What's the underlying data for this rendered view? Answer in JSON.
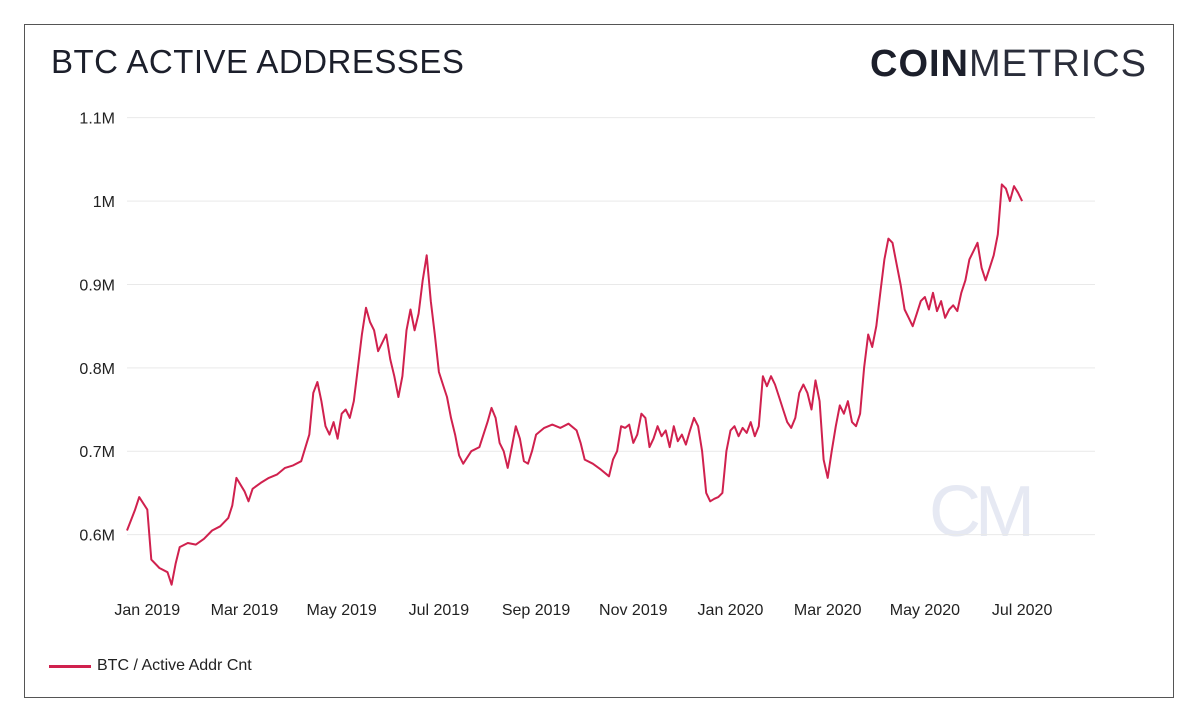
{
  "header": {
    "title": "BTC ACTIVE ADDRESSES",
    "logo_bold": "COIN",
    "logo_light": "METRICS",
    "watermark": "CM"
  },
  "colors": {
    "series": "#d0214e",
    "grid": "#e9e9e9",
    "text": "#222222"
  },
  "chart_data": {
    "type": "line",
    "title": "BTC ACTIVE ADDRESSES",
    "xlabel": "",
    "ylabel": "",
    "ylim": [
      530000,
      1120000
    ],
    "y_ticks": [
      {
        "value": 600000,
        "label": "0.6M"
      },
      {
        "value": 700000,
        "label": "0.7M"
      },
      {
        "value": 800000,
        "label": "0.8M"
      },
      {
        "value": 900000,
        "label": "0.9M"
      },
      {
        "value": 1000000,
        "label": "1M"
      },
      {
        "value": 1100000,
        "label": "1.1M"
      }
    ],
    "x_range_days": [
      -5,
      234
    ],
    "x_ticks": [
      {
        "day": 0,
        "label": "Jan 2019"
      },
      {
        "day": 24,
        "label": "Mar 2019"
      },
      {
        "day": 48,
        "label": "May 2019"
      },
      {
        "day": 72,
        "label": "Jul 2019"
      },
      {
        "day": 96,
        "label": "Sep 2019"
      },
      {
        "day": 120,
        "label": "Nov 2019"
      },
      {
        "day": 144,
        "label": "Jan 2020"
      },
      {
        "day": 168,
        "label": "Mar 2020"
      },
      {
        "day": 192,
        "label": "May 2020"
      },
      {
        "day": 216,
        "label": "Jul 2020"
      }
    ],
    "series": [
      {
        "name": "BTC / Active Addr Cnt",
        "points": [
          [
            -5,
            605000
          ],
          [
            -3,
            630000
          ],
          [
            -2,
            645000
          ],
          [
            0,
            630000
          ],
          [
            1,
            570000
          ],
          [
            3,
            560000
          ],
          [
            5,
            555000
          ],
          [
            6,
            540000
          ],
          [
            7,
            565000
          ],
          [
            8,
            585000
          ],
          [
            10,
            590000
          ],
          [
            12,
            588000
          ],
          [
            14,
            595000
          ],
          [
            16,
            605000
          ],
          [
            18,
            610000
          ],
          [
            20,
            620000
          ],
          [
            21,
            635000
          ],
          [
            22,
            668000
          ],
          [
            24,
            652000
          ],
          [
            25,
            640000
          ],
          [
            26,
            655000
          ],
          [
            28,
            662000
          ],
          [
            30,
            668000
          ],
          [
            32,
            672000
          ],
          [
            34,
            680000
          ],
          [
            36,
            683000
          ],
          [
            38,
            688000
          ],
          [
            40,
            720000
          ],
          [
            41,
            770000
          ],
          [
            42,
            783000
          ],
          [
            43,
            760000
          ],
          [
            44,
            730000
          ],
          [
            45,
            720000
          ],
          [
            46,
            735000
          ],
          [
            47,
            715000
          ],
          [
            48,
            745000
          ],
          [
            49,
            750000
          ],
          [
            50,
            740000
          ],
          [
            51,
            760000
          ],
          [
            52,
            800000
          ],
          [
            53,
            840000
          ],
          [
            54,
            872000
          ],
          [
            55,
            855000
          ],
          [
            56,
            845000
          ],
          [
            57,
            820000
          ],
          [
            58,
            830000
          ],
          [
            59,
            840000
          ],
          [
            60,
            810000
          ],
          [
            61,
            790000
          ],
          [
            62,
            765000
          ],
          [
            63,
            790000
          ],
          [
            64,
            845000
          ],
          [
            65,
            870000
          ],
          [
            66,
            845000
          ],
          [
            67,
            865000
          ],
          [
            68,
            905000
          ],
          [
            69,
            935000
          ],
          [
            70,
            880000
          ],
          [
            71,
            840000
          ],
          [
            72,
            795000
          ],
          [
            73,
            780000
          ],
          [
            74,
            765000
          ],
          [
            75,
            740000
          ],
          [
            76,
            720000
          ],
          [
            77,
            695000
          ],
          [
            78,
            685000
          ],
          [
            80,
            700000
          ],
          [
            82,
            705000
          ],
          [
            84,
            735000
          ],
          [
            85,
            752000
          ],
          [
            86,
            740000
          ],
          [
            87,
            710000
          ],
          [
            88,
            700000
          ],
          [
            89,
            680000
          ],
          [
            90,
            705000
          ],
          [
            91,
            730000
          ],
          [
            92,
            715000
          ],
          [
            93,
            688000
          ],
          [
            94,
            685000
          ],
          [
            95,
            700000
          ],
          [
            96,
            720000
          ],
          [
            98,
            728000
          ],
          [
            100,
            732000
          ],
          [
            102,
            728000
          ],
          [
            104,
            733000
          ],
          [
            106,
            725000
          ],
          [
            107,
            710000
          ],
          [
            108,
            690000
          ],
          [
            110,
            685000
          ],
          [
            112,
            678000
          ],
          [
            114,
            670000
          ],
          [
            115,
            690000
          ],
          [
            116,
            700000
          ],
          [
            117,
            730000
          ],
          [
            118,
            728000
          ],
          [
            119,
            732000
          ],
          [
            120,
            710000
          ],
          [
            121,
            720000
          ],
          [
            122,
            745000
          ],
          [
            123,
            740000
          ],
          [
            124,
            705000
          ],
          [
            125,
            715000
          ],
          [
            126,
            730000
          ],
          [
            127,
            718000
          ],
          [
            128,
            725000
          ],
          [
            129,
            705000
          ],
          [
            130,
            730000
          ],
          [
            131,
            712000
          ],
          [
            132,
            720000
          ],
          [
            133,
            708000
          ],
          [
            134,
            725000
          ],
          [
            135,
            740000
          ],
          [
            136,
            730000
          ],
          [
            137,
            700000
          ],
          [
            138,
            650000
          ],
          [
            139,
            640000
          ],
          [
            140,
            643000
          ],
          [
            141,
            645000
          ],
          [
            142,
            650000
          ],
          [
            143,
            700000
          ],
          [
            144,
            725000
          ],
          [
            145,
            730000
          ],
          [
            146,
            718000
          ],
          [
            147,
            728000
          ],
          [
            148,
            722000
          ],
          [
            149,
            735000
          ],
          [
            150,
            718000
          ],
          [
            151,
            730000
          ],
          [
            152,
            790000
          ],
          [
            153,
            778000
          ],
          [
            154,
            790000
          ],
          [
            155,
            780000
          ],
          [
            156,
            765000
          ],
          [
            157,
            750000
          ],
          [
            158,
            735000
          ],
          [
            159,
            728000
          ],
          [
            160,
            740000
          ],
          [
            161,
            770000
          ],
          [
            162,
            780000
          ],
          [
            163,
            770000
          ],
          [
            164,
            750000
          ],
          [
            165,
            785000
          ],
          [
            166,
            760000
          ],
          [
            167,
            690000
          ],
          [
            168,
            668000
          ],
          [
            169,
            700000
          ],
          [
            170,
            730000
          ],
          [
            171,
            755000
          ],
          [
            172,
            745000
          ],
          [
            173,
            760000
          ],
          [
            174,
            735000
          ],
          [
            175,
            730000
          ],
          [
            176,
            745000
          ],
          [
            177,
            800000
          ],
          [
            178,
            840000
          ],
          [
            179,
            825000
          ],
          [
            180,
            850000
          ],
          [
            181,
            890000
          ],
          [
            182,
            930000
          ],
          [
            183,
            955000
          ],
          [
            184,
            950000
          ],
          [
            185,
            925000
          ],
          [
            186,
            900000
          ],
          [
            187,
            870000
          ],
          [
            188,
            860000
          ],
          [
            189,
            850000
          ],
          [
            190,
            865000
          ],
          [
            191,
            880000
          ],
          [
            192,
            885000
          ],
          [
            193,
            870000
          ],
          [
            194,
            890000
          ],
          [
            195,
            868000
          ],
          [
            196,
            880000
          ],
          [
            197,
            860000
          ],
          [
            198,
            870000
          ],
          [
            199,
            875000
          ],
          [
            200,
            868000
          ],
          [
            201,
            890000
          ],
          [
            202,
            905000
          ],
          [
            203,
            930000
          ],
          [
            204,
            940000
          ],
          [
            205,
            950000
          ],
          [
            206,
            920000
          ],
          [
            207,
            905000
          ],
          [
            208,
            920000
          ],
          [
            209,
            935000
          ],
          [
            210,
            960000
          ],
          [
            211,
            1020000
          ],
          [
            212,
            1015000
          ],
          [
            213,
            1000000
          ],
          [
            214,
            1018000
          ],
          [
            215,
            1010000
          ],
          [
            216,
            1000000
          ]
        ]
      }
    ]
  }
}
